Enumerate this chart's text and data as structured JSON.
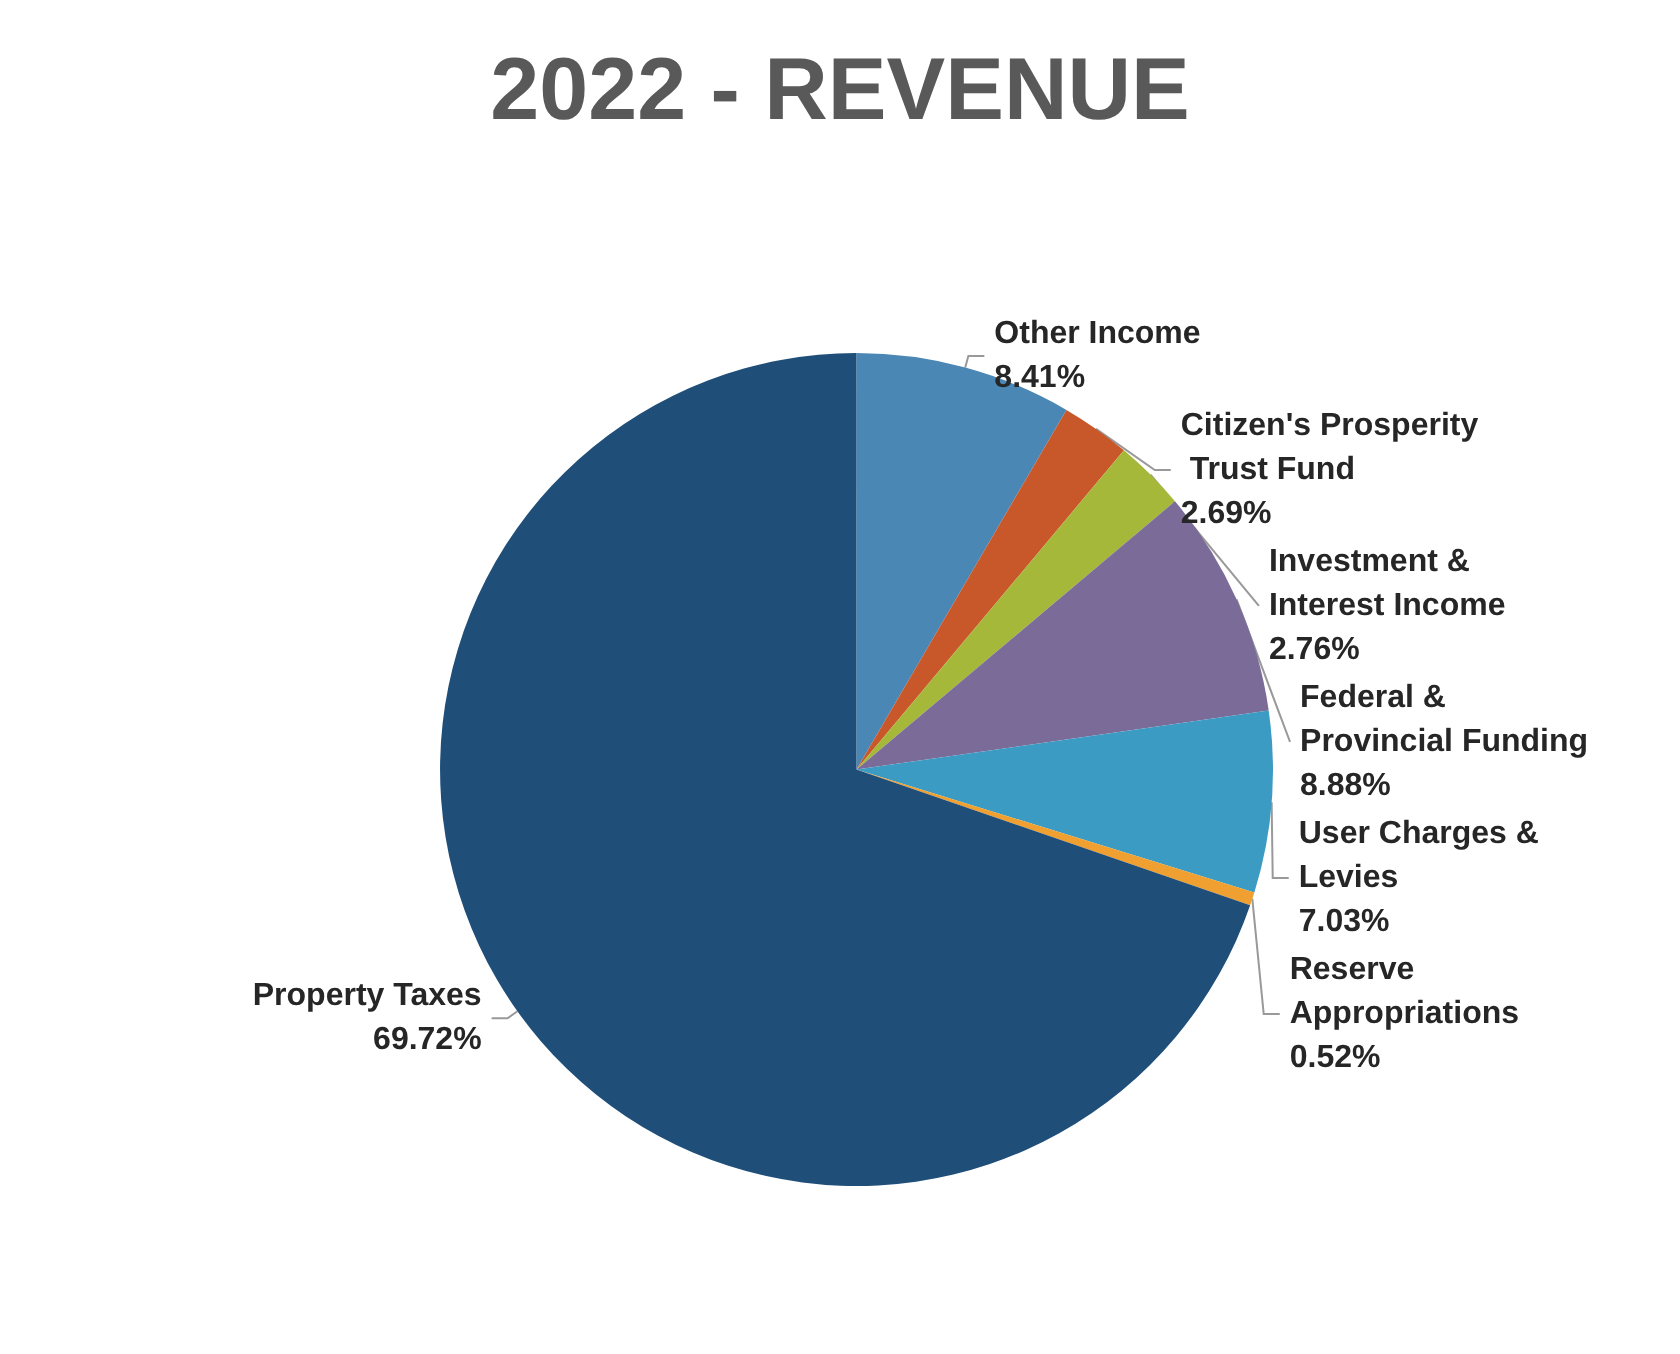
{
  "chart_data": {
    "type": "pie",
    "title": "2022 - REVENUE",
    "categories": [
      "Other Income",
      "Citizen's Prosperity Trust Fund",
      "Investment & Interest Income",
      "Federal & Provincial Funding",
      "User Charges & Levies",
      "Reserve Appropriations",
      "Property Taxes"
    ],
    "values": [
      8.41,
      2.69,
      2.76,
      8.88,
      7.03,
      0.52,
      69.72
    ],
    "colors": [
      "#4a87b5",
      "#c8582a",
      "#a6b83a",
      "#7b6b98",
      "#3b9bc2",
      "#f0a030",
      "#1f4e79"
    ],
    "value_labels": [
      "8.41%",
      "2.69%",
      "2.76%",
      "8.88%",
      "7.03%",
      "0.52%",
      "69.72%"
    ],
    "legend": false
  }
}
